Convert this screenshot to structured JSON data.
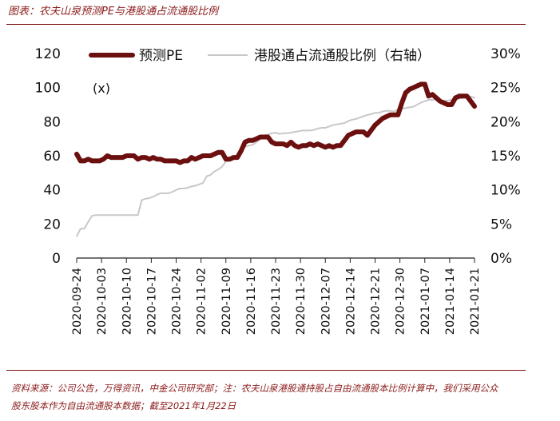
{
  "title": "图表：农夫山泉预测PE与港股通占流通股比例",
  "source_line1": "资料来源：公司公告，万得资讯，中金公司研究部；注：农夫山泉港股通持股占自由流通股本比例计算中，我们采用公众",
  "source_line2": "股东股本作为自由流通股本数据；截至2021年1月22日",
  "chart_data": {
    "type": "line",
    "unit_label": "(x)",
    "left_axis": {
      "ylim": [
        0,
        120
      ],
      "ticks": [
        "0",
        "20",
        "40",
        "60",
        "80",
        "100",
        "120"
      ]
    },
    "right_axis": {
      "ylim": [
        0,
        30
      ],
      "ticks": [
        "0%",
        "5%",
        "10%",
        "15%",
        "20%",
        "25%",
        "30%"
      ]
    },
    "x_ticks": [
      "2020-09-24",
      "2020-10-03",
      "2020-10-10",
      "2020-10-17",
      "2020-10-24",
      "2020-11-02",
      "2020-11-09",
      "2020-11-16",
      "2020-11-23",
      "2020-11-30",
      "2020-12-07",
      "2020-12-14",
      "2020-12-21",
      "2020-12-30",
      "2021-01-07",
      "2021-01-14",
      "2021-01-21"
    ],
    "legend": [
      "预测PE",
      "港股通占流通股比例（右轴）"
    ],
    "colors": {
      "pe": "#6b0f0f",
      "ratio": "#c8c8c8"
    },
    "series": [
      {
        "name": "预测PE",
        "axis": "left",
        "values": [
          61,
          57,
          57,
          58,
          57,
          57,
          57,
          58,
          60,
          59,
          59,
          59,
          59,
          60,
          60,
          60,
          58,
          59,
          59,
          58,
          59,
          58,
          58,
          57,
          57,
          57,
          57,
          56,
          57,
          57,
          59,
          58,
          59,
          60,
          60,
          60,
          61,
          62,
          62,
          58,
          58,
          59,
          59,
          63,
          68,
          69,
          69,
          70,
          71,
          71,
          71,
          68,
          67,
          67,
          67,
          66,
          68,
          66,
          65,
          66,
          66,
          67,
          66,
          67,
          66,
          65,
          66,
          65,
          66,
          66,
          69,
          72,
          73,
          74,
          74,
          74,
          72,
          75,
          78,
          80,
          82,
          83,
          84,
          84,
          84,
          91,
          97,
          99,
          100,
          101,
          102,
          102,
          95,
          96,
          94,
          92,
          91,
          90,
          90,
          94,
          95,
          95,
          95,
          92,
          89
        ]
      },
      {
        "name": "港股通占流通股比例（右轴）",
        "axis": "right",
        "values": [
          3.2,
          4.3,
          4.3,
          5.3,
          6.2,
          6.3,
          6.3,
          6.3,
          6.3,
          6.3,
          6.3,
          6.3,
          6.3,
          6.3,
          6.3,
          6.3,
          6.3,
          8.5,
          8.7,
          8.8,
          9.0,
          9.3,
          9.5,
          9.5,
          9.5,
          9.7,
          10.0,
          10.2,
          10.2,
          10.3,
          10.5,
          10.6,
          10.8,
          11.0,
          12.0,
          12.2,
          12.7,
          13.0,
          13.4,
          14.2,
          14.3,
          14.5,
          15.0,
          16.0,
          16.3,
          16.5,
          16.6,
          17.0,
          17.5,
          18.0,
          18.1,
          18.3,
          18.4,
          18.2,
          18.3,
          18.3,
          18.4,
          18.5,
          18.6,
          18.7,
          18.7,
          18.7,
          18.8,
          19.0,
          19.1,
          19.1,
          19.3,
          19.5,
          19.6,
          19.7,
          19.8,
          20.1,
          20.3,
          20.4,
          20.6,
          20.8,
          21.0,
          21.1,
          21.3,
          21.3,
          21.5,
          21.6,
          21.6,
          21.5,
          21.8,
          21.9,
          22.0,
          22.1,
          22.2,
          22.5,
          22.8,
          23.0,
          23.2,
          23.2,
          23.3,
          23.0,
          23.1,
          23.1,
          23.2,
          23.3,
          23.4,
          23.5,
          23.6,
          23.7,
          23.5
        ]
      }
    ]
  }
}
